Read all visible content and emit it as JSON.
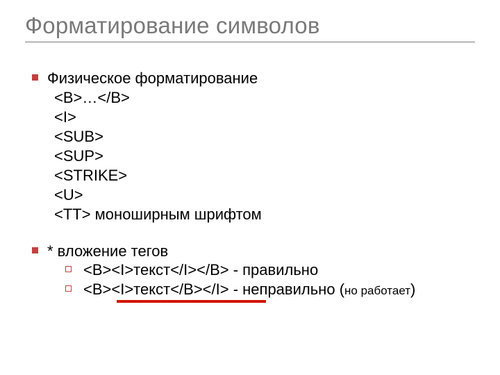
{
  "colors": {
    "title": "#797979",
    "rule": "#7a7a7a",
    "body": "#000000",
    "bullet": "#c44040",
    "underline": "#d01600",
    "background": "#ffffff"
  },
  "fontSizes": {
    "title": 33,
    "body": 22,
    "small": 17
  },
  "title": "Форматирование символов",
  "section1": {
    "heading": "Физическое форматирование",
    "lines": [
      "<B>…</B>",
      "<I>",
      "<SUB>",
      "<SUP>",
      "<STRIKE>",
      "<U>",
      "<TT>   моноширным шрифтом"
    ]
  },
  "section2": {
    "heading": "* вложение тегов",
    "items": [
      {
        "text": "<B><I>текст</I></B> - правильно"
      },
      {
        "text": "<B><I>текст</B></I> - неправильно ",
        "tail_open": "(",
        "tail_small": "но работает",
        "tail_close": ")"
      }
    ]
  }
}
